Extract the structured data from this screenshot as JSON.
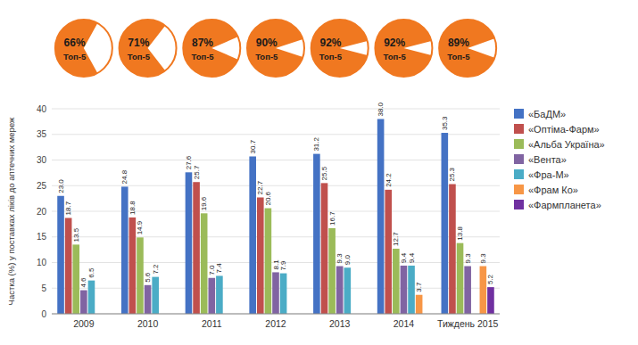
{
  "chart_data": [
    {
      "type": "bar",
      "categories": [
        "2009",
        "2010",
        "2011",
        "2012",
        "2013",
        "2014",
        "Тиждень 2015"
      ],
      "series": [
        {
          "name": "«БаДМ»",
          "color": "#4472C4",
          "values": [
            23.0,
            24.8,
            27.6,
            30.7,
            31.2,
            38.0,
            35.3
          ],
          "value_labels": [
            "23.0",
            "24.8",
            "27.6",
            "30.7",
            "31.2",
            "38.0",
            "35.3"
          ]
        },
        {
          "name": "«Оптіма-Фарм»",
          "color": "#C0504D",
          "values": [
            18.7,
            18.8,
            25.7,
            22.7,
            25.5,
            24.2,
            25.3
          ],
          "value_labels": [
            "18.7",
            "18.8",
            "25.7",
            "22.7",
            "25.5",
            "24.2",
            "25.3"
          ]
        },
        {
          "name": "«Альба Україна»",
          "color": "#9BBB59",
          "values": [
            13.5,
            14.9,
            19.6,
            20.6,
            16.7,
            12.7,
            13.8
          ],
          "value_labels": [
            "13.5",
            "14.9",
            "19.6",
            "20.6",
            "16.7",
            "12.7",
            "13.8"
          ]
        },
        {
          "name": "«Вента»",
          "color": "#8064A2",
          "values": [
            4.6,
            5.6,
            7.0,
            8.1,
            9.3,
            9.4,
            9.3
          ],
          "value_labels": [
            "4.6",
            "5.6",
            "7.0",
            "8.1",
            "9.3",
            "9.4",
            "9.3"
          ]
        },
        {
          "name": "«Фра-М»",
          "color": "#4BACC6",
          "values": [
            6.5,
            7.2,
            7.4,
            7.9,
            9.0,
            9.4,
            0.0
          ],
          "value_labels": [
            "6.5",
            "7.2",
            "7.4",
            "7.9",
            "9.0",
            "9.4",
            null
          ]
        },
        {
          "name": "«Фрам Ко»",
          "color": "#F79646",
          "values": [
            0.0,
            0.0,
            0.0,
            0.0,
            0.0,
            3.7,
            9.3
          ],
          "value_labels": [
            null,
            null,
            null,
            null,
            null,
            "3.7",
            "9.3"
          ]
        },
        {
          "name": "«Фармпланета»",
          "color": "#7030A0",
          "values": [
            0.0,
            0.0,
            0.0,
            0.0,
            0.0,
            0.0,
            5.2
          ],
          "value_labels": [
            null,
            null,
            null,
            null,
            null,
            null,
            "5.2"
          ]
        }
      ],
      "ylabel": "Частка (%) у поставках ліків до аптечних мереж",
      "ylim": [
        0,
        40
      ],
      "yticks": [
        0,
        5,
        10,
        15,
        20,
        25,
        30,
        35,
        40
      ],
      "grid": true,
      "legend": "right",
      "data_labels": true
    },
    {
      "type": "pie",
      "values": [
        66,
        71,
        87,
        90,
        92,
        92,
        89
      ],
      "value_labels": [
        "66%",
        "71%",
        "87%",
        "90%",
        "92%",
        "92%",
        "89%"
      ],
      "color": "#F07820",
      "annotation": "Топ-5",
      "data_labels": true
    }
  ]
}
